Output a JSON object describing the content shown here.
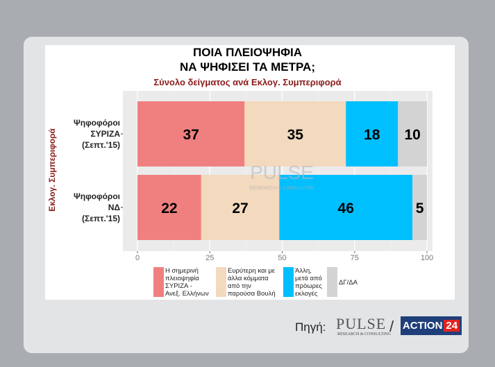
{
  "chart_data": {
    "type": "bar",
    "orientation": "horizontal",
    "stacked": true,
    "title_lines": [
      "ΠΟΙΑ ΠΛΕΙΟΨΗΦΙΑ",
      "ΝΑ ΨΗΦΙΣΕΙ ΤΑ ΜΕΤΡΑ;"
    ],
    "subtitle": "Σύνολο δείγματος ανά Εκλογ. Συμπεριφορά",
    "ylabel": "Εκλογ. Συμπεριφορά",
    "categories": [
      {
        "lines": [
          "Ψηφοφόροι",
          "ΣΥΡΙΖΑ",
          "(Σεπτ.'15)"
        ]
      },
      {
        "lines": [
          "Ψηφοφόροι",
          "ΝΔ",
          "(Σεπτ.'15)"
        ]
      }
    ],
    "series": [
      {
        "color": "#f08080",
        "values": [
          37,
          22
        ],
        "legend_lines": [
          "Η σημερινή",
          "πλειοψηφία",
          "ΣΥΡΙΖΑ -",
          "Ανεξ. Ελλήνων"
        ]
      },
      {
        "color": "#f3d9bd",
        "values": [
          35,
          27
        ],
        "legend_lines": [
          "Ευρύτερη και με",
          "άλλα κόμματα",
          "από την",
          "παρούσα Βουλή"
        ]
      },
      {
        "color": "#00bfff",
        "values": [
          18,
          46
        ],
        "legend_lines": [
          "Άλλη,",
          "μετά από",
          "πρόωρες",
          "εκλογές"
        ]
      },
      {
        "color": "#d3d3d3",
        "values": [
          10,
          5
        ],
        "legend_lines": [
          "ΔΓ/ΔΑ"
        ]
      }
    ],
    "xlim": [
      0,
      100
    ],
    "xticks": [
      0,
      25,
      50,
      75,
      100
    ],
    "plot_background": "#ebebeb",
    "grid": true,
    "legend_position": "bottom"
  },
  "watermark": {
    "text": "PULSE",
    "subtext": "RESEARCH & CONSULTING"
  },
  "footer": {
    "source_label": "Πηγή:",
    "pulse_logo": "PULSE",
    "pulse_logo_sub": "RESEARCH & CONSULTING",
    "separator": "/",
    "action_text": "ACTION",
    "action_num": "24"
  }
}
